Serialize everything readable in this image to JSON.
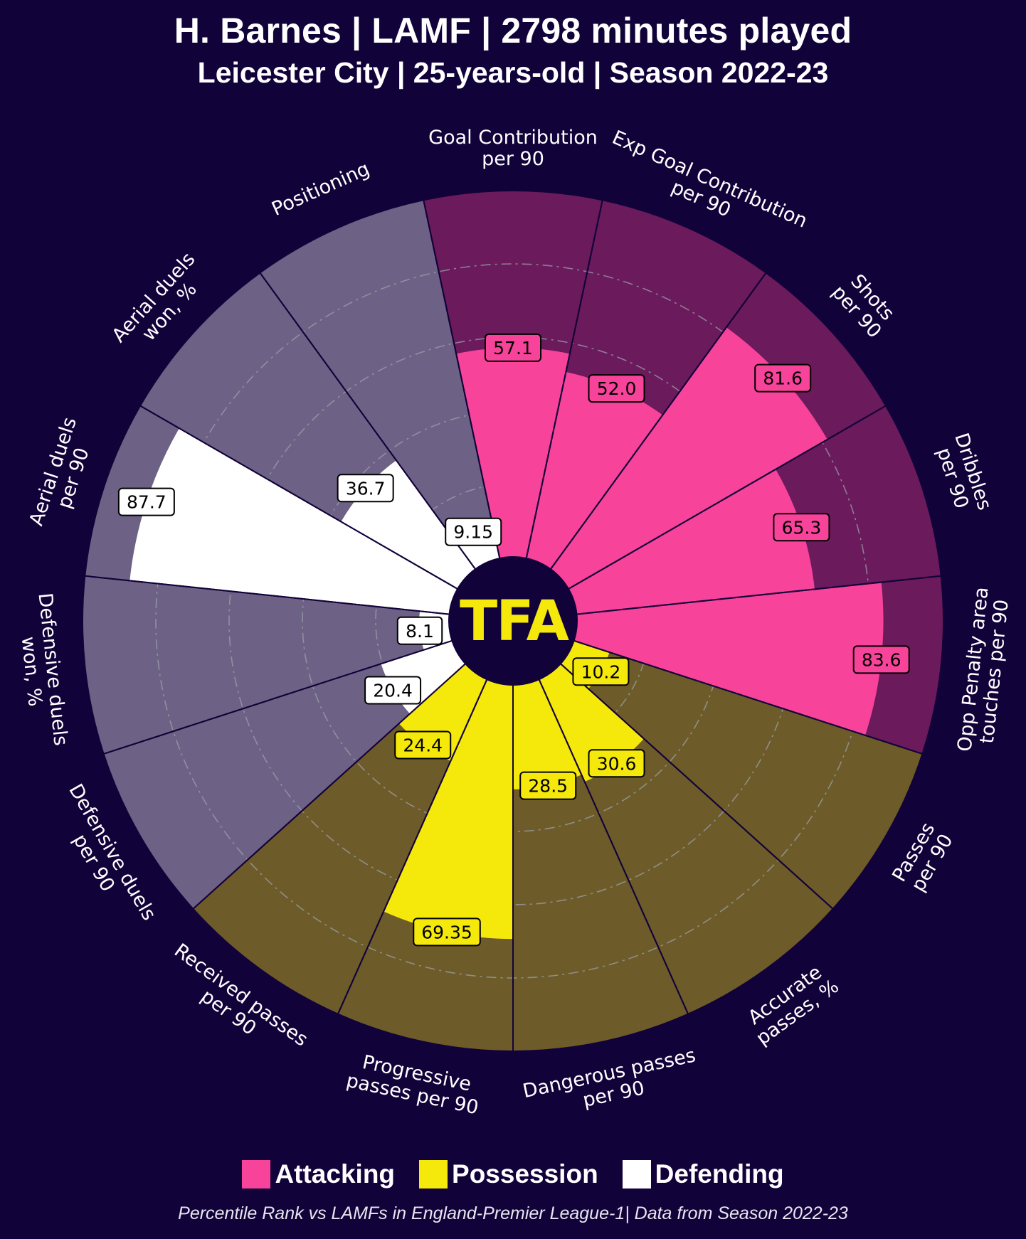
{
  "header": {
    "title": "H. Barnes | LAMF | 2798 minutes played",
    "subtitle": "Leicester City | 25-years-old | Season 2022-23"
  },
  "logo_text": "TFA",
  "footer": "Percentile Rank vs LAMFs in England-Premier League-1| Data from Season 2022-23",
  "colors": {
    "background": "#12023a",
    "attacking": "#f7439a",
    "attacking_bg": "#6b1a5c",
    "possession": "#f5e80b",
    "possession_bg": "#6e5b2a",
    "defending": "#ffffff",
    "defending_bg": "#6d6285",
    "logo": "#f5e80b"
  },
  "chart_data": {
    "type": "pizza",
    "title": "H. Barnes | LAMF | 2798 minutes played",
    "range": [
      0,
      100
    ],
    "legend": [
      {
        "name": "Attacking",
        "color": "#f7439a"
      },
      {
        "name": "Possession",
        "color": "#f5e80b"
      },
      {
        "name": "Defending",
        "color": "#ffffff"
      }
    ],
    "params": [
      {
        "label": [
          "Goal Contribution",
          "per 90"
        ],
        "value": 57.1,
        "value_label": "57.1",
        "group": "Attacking"
      },
      {
        "label": [
          "Exp Goal Contribution",
          "per 90"
        ],
        "value": 52.0,
        "value_label": "52.0",
        "group": "Attacking"
      },
      {
        "label": [
          "Shots",
          "per 90"
        ],
        "value": 81.6,
        "value_label": "81.6",
        "group": "Attacking"
      },
      {
        "label": [
          "Dribbles",
          "per 90"
        ],
        "value": 65.3,
        "value_label": "65.3",
        "group": "Attacking"
      },
      {
        "label": [
          "Opp Penalty area",
          "touches per 90"
        ],
        "value": 83.6,
        "value_label": "83.6",
        "group": "Attacking"
      },
      {
        "label": [
          "Passes",
          "per 90"
        ],
        "value": 10.2,
        "value_label": "10.2",
        "group": "Possession"
      },
      {
        "label": [
          "Accurate",
          "passes, %"
        ],
        "value": 30.6,
        "value_label": "30.6",
        "group": "Possession"
      },
      {
        "label": [
          "Dangerous passes",
          "per 90"
        ],
        "value": 28.5,
        "value_label": "28.5",
        "group": "Possession"
      },
      {
        "label": [
          "Progressive",
          "passes per 90"
        ],
        "value": 69.35,
        "value_label": "69.35",
        "group": "Possession"
      },
      {
        "label": [
          "Received passes",
          "per 90"
        ],
        "value": 24.4,
        "value_label": "24.4",
        "group": "Possession"
      },
      {
        "label": [
          "Defensive duels",
          "per 90"
        ],
        "value": 20.4,
        "value_label": "20.4",
        "group": "Defending"
      },
      {
        "label": [
          "Defensive duels",
          "won, %"
        ],
        "value": 8.1,
        "value_label": "8.1",
        "group": "Defending"
      },
      {
        "label": [
          "Aerial duels",
          "per 90"
        ],
        "value": 87.7,
        "value_label": "87.7",
        "group": "Defending"
      },
      {
        "label": [
          "Aerial duels",
          "won, %"
        ],
        "value": 36.7,
        "value_label": "36.7",
        "group": "Defending"
      },
      {
        "label": [
          "Positioning"
        ],
        "value": 9.15,
        "value_label": "9.15",
        "group": "Defending"
      }
    ]
  }
}
